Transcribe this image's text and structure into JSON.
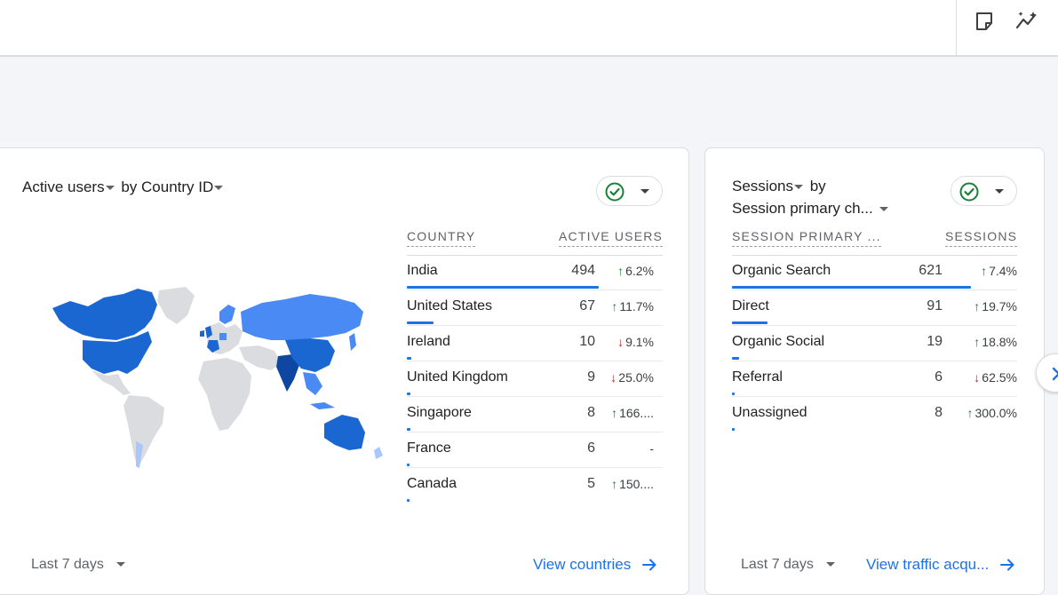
{
  "colors": {
    "accent": "#1a73e8",
    "up": "#188038",
    "down": "#c5221f"
  },
  "toolbar": {
    "icons": [
      "note-icon",
      "insights-sparkle-icon"
    ]
  },
  "country_card": {
    "metric_label": "Active users",
    "by_label": "by",
    "dimension_label": "Country ID",
    "col_country": "COUNTRY",
    "col_metric": "ACTIVE USERS",
    "rows": [
      {
        "name": "India",
        "value": "494",
        "trend": "up",
        "change": "6.2%",
        "share": 1.0
      },
      {
        "name": "United States",
        "value": "67",
        "trend": "up",
        "change": "11.7%",
        "share": 0.136
      },
      {
        "name": "Ireland",
        "value": "10",
        "trend": "down",
        "change": "9.1%",
        "share": 0.02
      },
      {
        "name": "United Kingdom",
        "value": "9",
        "trend": "down",
        "change": "25.0%",
        "share": 0.018
      },
      {
        "name": "Singapore",
        "value": "8",
        "trend": "up",
        "change": "166....",
        "share": 0.016
      },
      {
        "name": "France",
        "value": "6",
        "trend": "none",
        "change": "-",
        "share": 0.012
      },
      {
        "name": "Canada",
        "value": "5",
        "trend": "up",
        "change": "150....",
        "share": 0.01
      }
    ],
    "date_range": "Last 7 days",
    "link_label": "View countries"
  },
  "sessions_card": {
    "metric_label": "Sessions",
    "by_label": "by",
    "dimension_label": "Session primary ch...",
    "col_dimension": "SESSION PRIMARY ...",
    "col_metric": "SESSIONS",
    "rows": [
      {
        "name": "Organic Search",
        "value": "621",
        "trend": "up",
        "change": "7.4%",
        "share": 1.0
      },
      {
        "name": "Direct",
        "value": "91",
        "trend": "up",
        "change": "19.7%",
        "share": 0.147
      },
      {
        "name": "Organic Social",
        "value": "19",
        "trend": "up",
        "change": "18.8%",
        "share": 0.031
      },
      {
        "name": "Referral",
        "value": "6",
        "trend": "down",
        "change": "62.5%",
        "share": 0.01
      },
      {
        "name": "Unassigned",
        "value": "8",
        "trend": "up",
        "change": "300.0%",
        "share": 0.013
      }
    ],
    "date_range": "Last 7 days",
    "link_label": "View traffic acqu..."
  }
}
